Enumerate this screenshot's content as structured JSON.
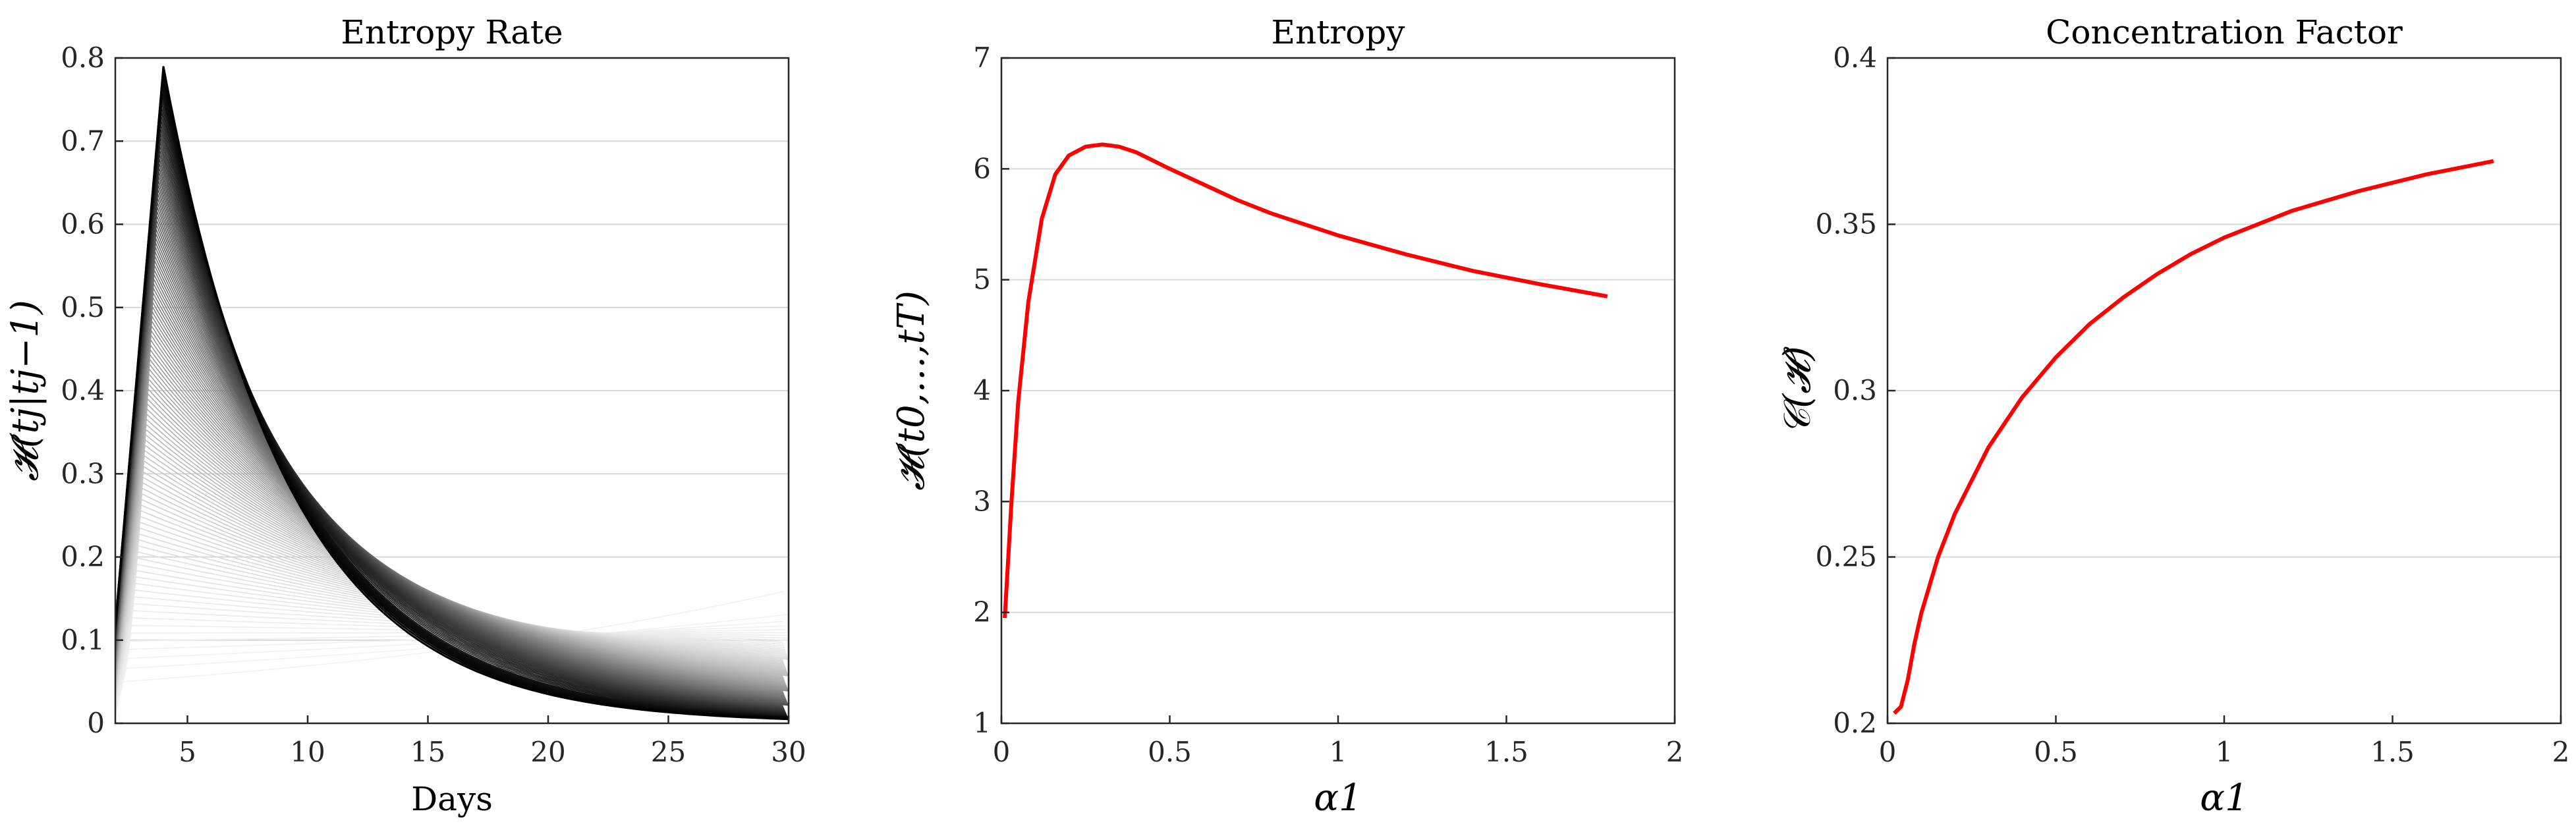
{
  "chart_data": [
    {
      "id": "entropy-rate",
      "type": "line",
      "title": "Entropy Rate",
      "xlabel": "Days",
      "ylabel": "𝓗(tj|tj−1)",
      "xlim": [
        2,
        30
      ],
      "ylim": [
        0,
        0.8
      ],
      "xticks": [
        5,
        10,
        15,
        20,
        25,
        30
      ],
      "yticks": [
        0,
        0.1,
        0.2,
        0.3,
        0.4,
        0.5,
        0.6,
        0.7,
        0.8
      ],
      "grid": "y",
      "line_color": "#000000",
      "series_family": {
        "description_count": 120,
        "onset_day": 2,
        "peak_day_range": [
          2.3,
          4
        ],
        "peak_value_range": [
          0.05,
          0.79
        ],
        "value_at_30_range": [
          0.005,
          0.16
        ],
        "shade_range": [
          "#f2f2f2",
          "#000000"
        ]
      }
    },
    {
      "id": "entropy",
      "type": "line",
      "title": "Entropy",
      "xlabel": "α1",
      "ylabel": "𝓗(t0,…,tT)",
      "xlim": [
        0,
        2
      ],
      "ylim": [
        1,
        7
      ],
      "xticks": [
        0,
        0.5,
        1,
        1.5,
        2
      ],
      "yticks": [
        1,
        2,
        3,
        4,
        5,
        6,
        7
      ],
      "grid": "y",
      "line_color": "#ff0000",
      "series": [
        {
          "x": [
            0.01,
            0.03,
            0.05,
            0.08,
            0.12,
            0.16,
            0.2,
            0.25,
            0.3,
            0.35,
            0.4,
            0.5,
            0.6,
            0.7,
            0.8,
            1.0,
            1.2,
            1.4,
            1.6,
            1.8
          ],
          "y": [
            1.95,
            3.0,
            3.9,
            4.8,
            5.55,
            5.95,
            6.12,
            6.2,
            6.22,
            6.2,
            6.15,
            6.0,
            5.86,
            5.72,
            5.6,
            5.4,
            5.23,
            5.08,
            4.96,
            4.85
          ]
        }
      ]
    },
    {
      "id": "concentration-factor",
      "type": "line",
      "title": "Concentration Factor",
      "xlabel": "α1",
      "ylabel": "𝒞(𝓗)",
      "xlim": [
        0,
        2
      ],
      "ylim": [
        0.2,
        0.4
      ],
      "xticks": [
        0,
        0.5,
        1,
        1.5,
        2
      ],
      "yticks": [
        0.2,
        0.25,
        0.3,
        0.35,
        0.4
      ],
      "grid": "y",
      "line_color": "#ff0000",
      "series": [
        {
          "x": [
            0.02,
            0.04,
            0.06,
            0.08,
            0.1,
            0.15,
            0.2,
            0.3,
            0.4,
            0.5,
            0.6,
            0.7,
            0.8,
            0.9,
            1.0,
            1.2,
            1.4,
            1.6,
            1.8
          ],
          "y": [
            0.203,
            0.205,
            0.213,
            0.224,
            0.233,
            0.25,
            0.263,
            0.283,
            0.298,
            0.31,
            0.32,
            0.328,
            0.335,
            0.341,
            0.346,
            0.354,
            0.36,
            0.365,
            0.369
          ]
        }
      ]
    }
  ]
}
